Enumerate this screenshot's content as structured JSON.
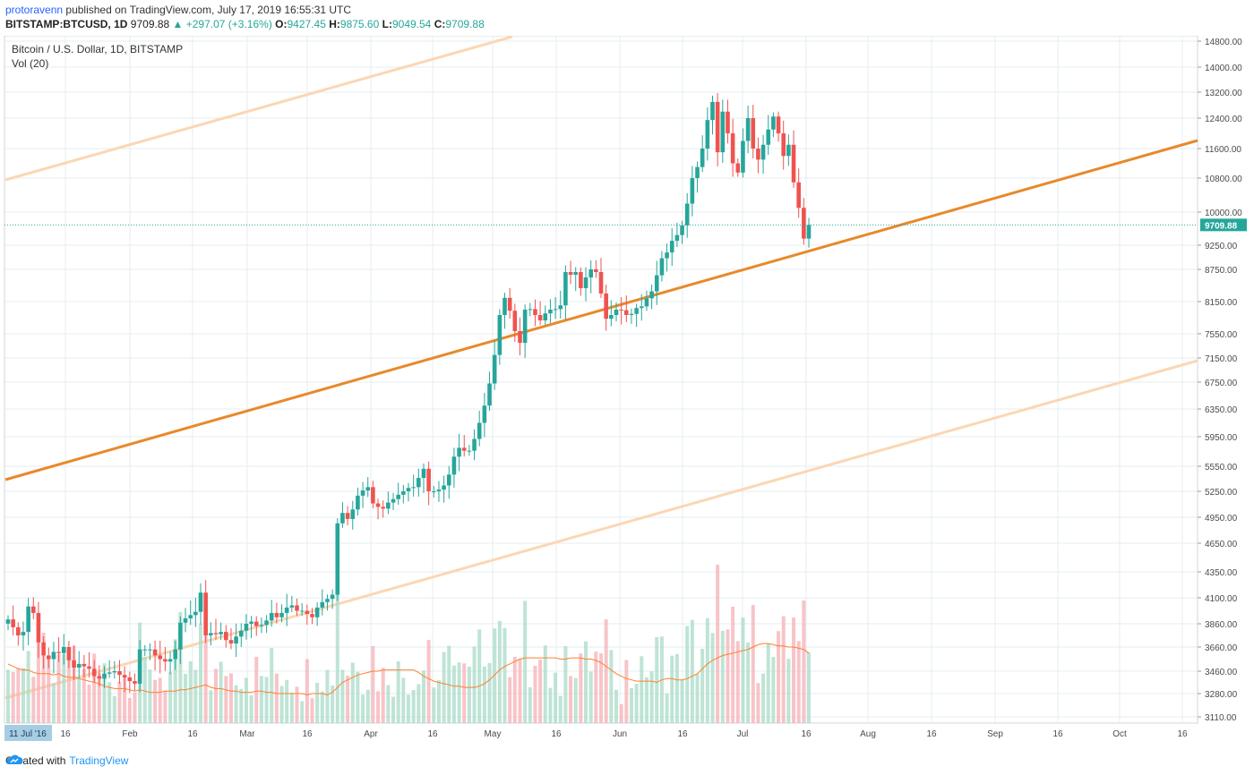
{
  "header": {
    "author": "protoravenn",
    "published": "published on TradingView.com, July 17, 2019 16:55:31 UTC",
    "symbol": "BITSTAMP:BTCUSD, 1D",
    "last": "9709.88",
    "change": "▲ +297.07 (+3.16%)",
    "open_label": "O:",
    "open": "9427.45",
    "high_label": "H:",
    "high": "9875.60",
    "low_label": "L:",
    "low": "9049.54",
    "close_label": "C:",
    "close": "9709.88"
  },
  "legend": {
    "title": "Bitcoin / U.S. Dollar, 1D, BITSTAMP",
    "volume": "Vol (20)"
  },
  "footer": {
    "created_with": "Created with",
    "brand": "TradingView"
  },
  "colors": {
    "up": "#26a69a",
    "down": "#ef5350",
    "channel_main": "#e8892b",
    "channel_outer": "#fbd7b4",
    "grid": "#e6ecf2",
    "volume_ma": "#ff7f2a"
  },
  "chart_data": {
    "type": "candlestick",
    "title": "Bitcoin / U.S. Dollar, 1D, BITSTAMP",
    "y_ticks": [
      "14800.00",
      "14000.00",
      "13200.00",
      "12400.00",
      "11600.00",
      "10800.00",
      "10000.00",
      "9250.00",
      "8750.00",
      "8150.00",
      "7550.00",
      "7150.00",
      "6750.00",
      "6350.00",
      "5950.00",
      "5550.00",
      "5250.00",
      "4950.00",
      "4650.00",
      "4350.00",
      "4100.00",
      "3860.00",
      "3660.00",
      "3460.00",
      "3280.00",
      "3110.00"
    ],
    "x_ticks": [
      "11 Jul '16",
      "16",
      "Feb",
      "16",
      "Mar",
      "16",
      "Apr",
      "16",
      "May",
      "16",
      "Jun",
      "16",
      "Jul",
      "16",
      "Aug",
      "16",
      "Sep",
      "16",
      "Oct",
      "16"
    ],
    "last_price_label": "9709.88",
    "candles": [
      3900,
      3830,
      3760,
      3790,
      4020,
      3960,
      3700,
      3590,
      3560,
      3620,
      3610,
      3660,
      3550,
      3490,
      3520,
      3500,
      3480,
      3420,
      3400,
      3440,
      3450,
      3460,
      3430,
      3410,
      3380,
      3360,
      3640,
      3640,
      3640,
      3590,
      3560,
      3540,
      3560,
      3640,
      3870,
      3910,
      3940,
      3970,
      4150,
      3760,
      3780,
      3770,
      3790,
      3720,
      3690,
      3750,
      3800,
      3860,
      3880,
      3840,
      3850,
      3890,
      3960,
      3920,
      3960,
      4010,
      4030,
      3980,
      3980,
      3950,
      3920,
      4010,
      4060,
      4090,
      4130,
      4880,
      5000,
      4930,
      5040,
      5200,
      5260,
      5300,
      5110,
      5070,
      5050,
      5120,
      5160,
      5210,
      5250,
      5290,
      5300,
      5410,
      5520,
      5250,
      5250,
      5270,
      5320,
      5450,
      5680,
      5800,
      5760,
      5760,
      5920,
      6150,
      6400,
      6730,
      7200,
      7900,
      8220,
      7980,
      7600,
      7400,
      8000,
      8010,
      7900,
      7800,
      7930,
      8000,
      8010,
      8080,
      8700,
      8650,
      8700,
      8400,
      8600,
      8750,
      8700,
      8300,
      7830,
      7900,
      8000,
      7990,
      7900,
      7920,
      8030,
      8060,
      8210,
      8340,
      8640,
      8980,
      9100,
      9350,
      9480,
      9700,
      10200,
      10800,
      11100,
      11600,
      12350,
      12900,
      11500,
      12600,
      12000,
      11200,
      10950,
      11800,
      12400,
      11600,
      11300,
      11700,
      12100,
      12450,
      12000,
      11400,
      11700,
      10700,
      10100,
      9400,
      9710
    ],
    "volume_ma": [
      3520,
      3500,
      3480,
      3470,
      3470,
      3450,
      3440,
      3440,
      3440,
      3430,
      3440,
      3420,
      3410,
      3410,
      3400,
      3390,
      3380,
      3370,
      3360,
      3340,
      3330,
      3320,
      3320,
      3320,
      3310,
      3300,
      3310,
      3300,
      3290,
      3290,
      3290,
      3300,
      3300,
      3300,
      3310,
      3310,
      3320,
      3330,
      3340,
      3350,
      3330,
      3320,
      3320,
      3310,
      3300,
      3300,
      3290,
      3290,
      3290,
      3300,
      3300,
      3290,
      3290,
      3280,
      3280,
      3280,
      3280,
      3280,
      3280,
      3270,
      3280,
      3280,
      3280,
      3270,
      3290,
      3330,
      3370,
      3390,
      3410,
      3430,
      3440,
      3450,
      3460,
      3460,
      3470,
      3470,
      3470,
      3470,
      3470,
      3470,
      3470,
      3450,
      3420,
      3400,
      3380,
      3370,
      3360,
      3350,
      3340,
      3340,
      3330,
      3330,
      3330,
      3340,
      3360,
      3390,
      3430,
      3470,
      3500,
      3520,
      3540,
      3560,
      3570,
      3570,
      3570,
      3570,
      3570,
      3570,
      3570,
      3560,
      3560,
      3570,
      3570,
      3570,
      3560,
      3560,
      3550,
      3530,
      3500,
      3470,
      3440,
      3420,
      3400,
      3390,
      3380,
      3380,
      3380,
      3380,
      3370,
      3390,
      3400,
      3400,
      3390,
      3390,
      3400,
      3420,
      3440,
      3480,
      3520,
      3550,
      3570,
      3590,
      3600,
      3610,
      3620,
      3630,
      3640,
      3660,
      3680,
      3690,
      3690,
      3680,
      3670,
      3670,
      3660,
      3660,
      3650,
      3640,
      3610
    ]
  }
}
